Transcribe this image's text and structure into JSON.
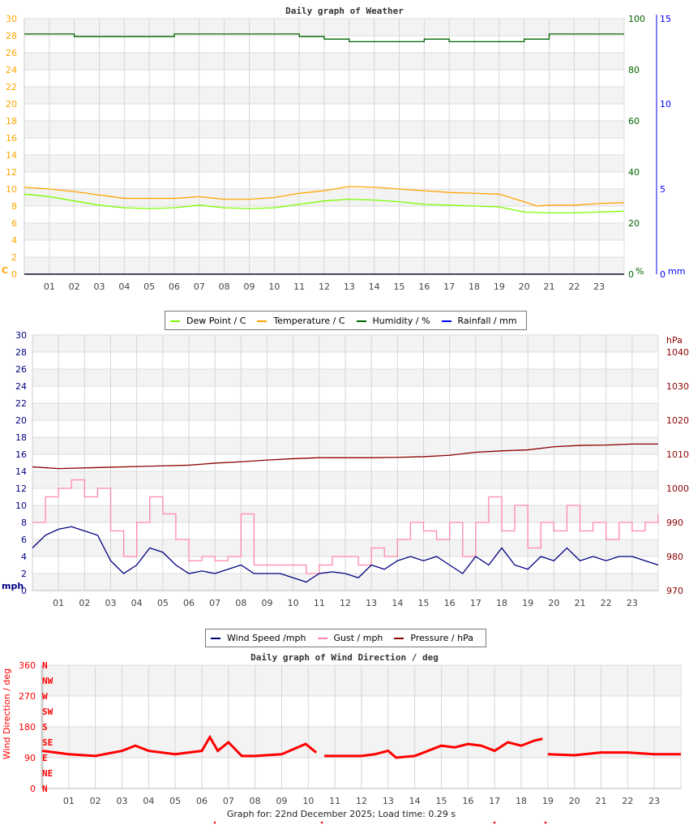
{
  "chart_data": [
    {
      "type": "line",
      "title": "Daily graph of Weather",
      "x_ticks": [
        "01",
        "02",
        "03",
        "04",
        "05",
        "06",
        "07",
        "08",
        "09",
        "10",
        "11",
        "12",
        "13",
        "14",
        "15",
        "16",
        "17",
        "18",
        "19",
        "20",
        "21",
        "22",
        "23"
      ],
      "xlim": [
        0,
        24
      ],
      "left_axis": {
        "unit": "C",
        "ylim": [
          0,
          30
        ],
        "ticks": [
          0,
          2,
          4,
          6,
          8,
          10,
          12,
          14,
          16,
          18,
          20,
          22,
          24,
          26,
          28,
          30
        ],
        "color": "#ffa500"
      },
      "right_axis_1": {
        "unit": "%",
        "ylim": [
          0,
          100
        ],
        "ticks": [
          0,
          20,
          40,
          60,
          80,
          100
        ],
        "color": "#006400"
      },
      "right_axis_2": {
        "unit": "mm",
        "ylim": [
          0,
          15
        ],
        "ticks": [
          0,
          5,
          10,
          15
        ],
        "color": "#0000ff"
      },
      "grid": true,
      "series": [
        {
          "name": "Dew Point / C",
          "axis": "left",
          "color": "#7cfc00",
          "x": [
            0,
            1,
            2,
            3,
            4,
            5,
            6,
            7,
            8,
            9,
            10,
            11,
            12,
            13,
            14,
            15,
            16,
            17,
            18,
            19,
            20,
            21,
            22,
            23,
            24
          ],
          "values": [
            9.4,
            9.1,
            8.6,
            8.1,
            7.8,
            7.7,
            7.8,
            8.1,
            7.8,
            7.7,
            7.8,
            8.2,
            8.6,
            8.8,
            8.7,
            8.5,
            8.2,
            8.1,
            8.0,
            7.9,
            7.3,
            7.2,
            7.2,
            7.3,
            7.4
          ]
        },
        {
          "name": "Temperature / C",
          "axis": "left",
          "color": "#ffa500",
          "x": [
            0,
            1,
            2,
            3,
            4,
            5,
            6,
            7,
            8,
            9,
            10,
            11,
            12,
            13,
            14,
            15,
            16,
            17,
            18,
            19,
            20,
            20.5,
            21,
            22,
            23,
            24
          ],
          "values": [
            10.2,
            10.0,
            9.7,
            9.3,
            8.9,
            8.9,
            8.9,
            9.1,
            8.8,
            8.8,
            9.0,
            9.5,
            9.8,
            10.3,
            10.2,
            10.0,
            9.8,
            9.6,
            9.5,
            9.4,
            8.5,
            8.0,
            8.1,
            8.1,
            8.3,
            8.4
          ]
        },
        {
          "name": "Humidity / %",
          "axis": "right1",
          "color": "#006400",
          "x": [
            0,
            1,
            2,
            3,
            4,
            5,
            6,
            7,
            8,
            9,
            10,
            11,
            12,
            13,
            14,
            15,
            16,
            17,
            18,
            19,
            20,
            21,
            22,
            23,
            24
          ],
          "values": [
            94,
            94,
            93,
            93,
            93,
            93,
            94,
            94,
            94,
            94,
            94,
            93,
            92,
            91,
            91,
            91,
            92,
            91,
            91,
            91,
            92,
            94,
            94,
            94,
            94
          ],
          "step": true
        },
        {
          "name": "Rainfall / mm",
          "axis": "right2",
          "color": "#0000ff",
          "x": [
            0,
            24
          ],
          "values": [
            0,
            0
          ]
        }
      ]
    },
    {
      "type": "line",
      "title": "",
      "x_ticks": [
        "01",
        "02",
        "03",
        "04",
        "05",
        "06",
        "07",
        "08",
        "09",
        "10",
        "11",
        "12",
        "13",
        "14",
        "15",
        "16",
        "17",
        "18",
        "19",
        "20",
        "21",
        "22",
        "23"
      ],
      "xlim": [
        0,
        24
      ],
      "left_axis": {
        "unit": "mph",
        "ylim": [
          0,
          30
        ],
        "ticks": [
          0,
          2,
          4,
          6,
          8,
          10,
          12,
          14,
          16,
          18,
          20,
          22,
          24,
          26,
          28,
          30
        ],
        "color": "#000080"
      },
      "right_axis_1": {
        "unit": "hPa",
        "ylim": [
          970,
          1045
        ],
        "ticks": [
          970,
          980,
          990,
          1000,
          1010,
          1020,
          1030,
          1040
        ],
        "color": "#8b0000"
      },
      "grid": true,
      "series": [
        {
          "name": "Gust / mph",
          "axis": "left",
          "color": "#ff88aa",
          "step": true,
          "x": [
            0,
            0.5,
            1,
            1.5,
            2,
            2.5,
            3,
            3.5,
            4,
            4.5,
            5,
            5.5,
            6,
            6.5,
            7,
            7.5,
            8,
            8.5,
            9,
            9.5,
            10,
            10.5,
            11,
            11.5,
            12,
            12.5,
            13,
            13.5,
            14,
            14.5,
            15,
            15.5,
            16,
            16.5,
            17,
            17.5,
            18,
            18.5,
            19,
            19.5,
            20,
            20.5,
            21,
            21.5,
            22,
            22.5,
            23,
            23.5,
            24
          ],
          "values": [
            8,
            11,
            12,
            13,
            11,
            12,
            7,
            4,
            8,
            11,
            9,
            6,
            3.5,
            4,
            3.5,
            4,
            9,
            3,
            3,
            3,
            3,
            2,
            3,
            4,
            4,
            3,
            5,
            4,
            6,
            8,
            7,
            6,
            8,
            4,
            8,
            11,
            7,
            10,
            5,
            8,
            7,
            10,
            7,
            8,
            6,
            8,
            7,
            8,
            9
          ]
        },
        {
          "name": "Wind Speed /mph",
          "axis": "left",
          "color": "#000080",
          "x": [
            0,
            0.5,
            1,
            1.5,
            2,
            2.5,
            3,
            3.5,
            4,
            4.5,
            5,
            5.5,
            6,
            6.5,
            7,
            7.5,
            8,
            8.5,
            9,
            9.5,
            10,
            10.5,
            11,
            11.5,
            12,
            12.5,
            13,
            13.5,
            14,
            14.5,
            15,
            15.5,
            16,
            16.5,
            17,
            17.5,
            18,
            18.5,
            19,
            19.5,
            20,
            20.5,
            21,
            21.5,
            22,
            22.5,
            23,
            23.5,
            24
          ],
          "values": [
            5,
            6.5,
            7.2,
            7.5,
            7.0,
            6.5,
            3.5,
            2,
            3,
            5,
            4.5,
            3,
            2,
            2.3,
            2,
            2.5,
            3,
            2,
            2,
            2,
            1.5,
            1,
            2,
            2.2,
            2,
            1.5,
            3,
            2.5,
            3.5,
            4,
            3.5,
            4,
            3,
            2,
            4,
            3,
            5,
            3,
            2.5,
            4,
            3.5,
            5,
            3.5,
            4,
            3.5,
            4,
            4,
            3.5,
            3
          ]
        },
        {
          "name": "Pressure / hPa",
          "axis": "right1",
          "color": "#8b0000",
          "x": [
            0,
            1,
            2,
            3,
            4,
            5,
            6,
            7,
            8,
            9,
            10,
            11,
            12,
            13,
            14,
            15,
            16,
            17,
            18,
            19,
            20,
            21,
            22,
            23,
            24
          ],
          "values": [
            1006.3,
            1005.8,
            1006,
            1006.2,
            1006.4,
            1006.6,
            1006.8,
            1007.4,
            1007.8,
            1008.3,
            1008.7,
            1009,
            1009,
            1009,
            1009.1,
            1009.3,
            1009.7,
            1010.6,
            1011,
            1011.3,
            1012.2,
            1012.6,
            1012.7,
            1013,
            1013
          ]
        }
      ]
    },
    {
      "type": "scatter",
      "title": "Daily graph of Wind Direction / deg",
      "ylabel": "Wind Direction / deg",
      "x_ticks": [
        "01",
        "02",
        "03",
        "04",
        "05",
        "06",
        "07",
        "08",
        "09",
        "10",
        "11",
        "12",
        "13",
        "14",
        "15",
        "16",
        "17",
        "18",
        "19",
        "20",
        "21",
        "22",
        "23"
      ],
      "xlim": [
        0,
        24
      ],
      "ylim": [
        0,
        360
      ],
      "y_ticks": [
        0,
        90,
        180,
        270,
        360
      ],
      "compass_labels": [
        "N",
        "NE",
        "E",
        "SE",
        "S",
        "SW",
        "W",
        "NW",
        "N"
      ],
      "grid": true,
      "series": [
        {
          "color": "#ff0000",
          "x": [
            0,
            0.5,
            1,
            2,
            3,
            3.5,
            4,
            5,
            6,
            6.3,
            6.6,
            7,
            7.5,
            8,
            9,
            9.9,
            10.3,
            10.5,
            10.6,
            12,
            12.5,
            13,
            13.3,
            14,
            14.5,
            15,
            15.5,
            16,
            16.5,
            17,
            17.5,
            18,
            18.5,
            18.8,
            18.9,
            19,
            20,
            21,
            22,
            23,
            24
          ],
          "values": [
            110,
            105,
            100,
            95,
            110,
            125,
            110,
            100,
            110,
            150,
            110,
            135,
            95,
            95,
            100,
            130,
            105,
            null,
            95,
            95,
            100,
            110,
            90,
            95,
            110,
            125,
            120,
            130,
            125,
            110,
            135,
            125,
            140,
            145,
            null,
            100,
            97,
            105,
            105,
            100,
            100
          ]
        }
      ]
    }
  ],
  "legend1": [
    "Dew Point / C",
    "Temperature / C",
    "Humidity / %",
    "Rainfall / mm"
  ],
  "legend2": [
    "Wind Speed /mph",
    "Gust / mph",
    "Pressure / hPa"
  ],
  "footer": "Graph for: 22nd December 2025; Load time: 0.29 s"
}
